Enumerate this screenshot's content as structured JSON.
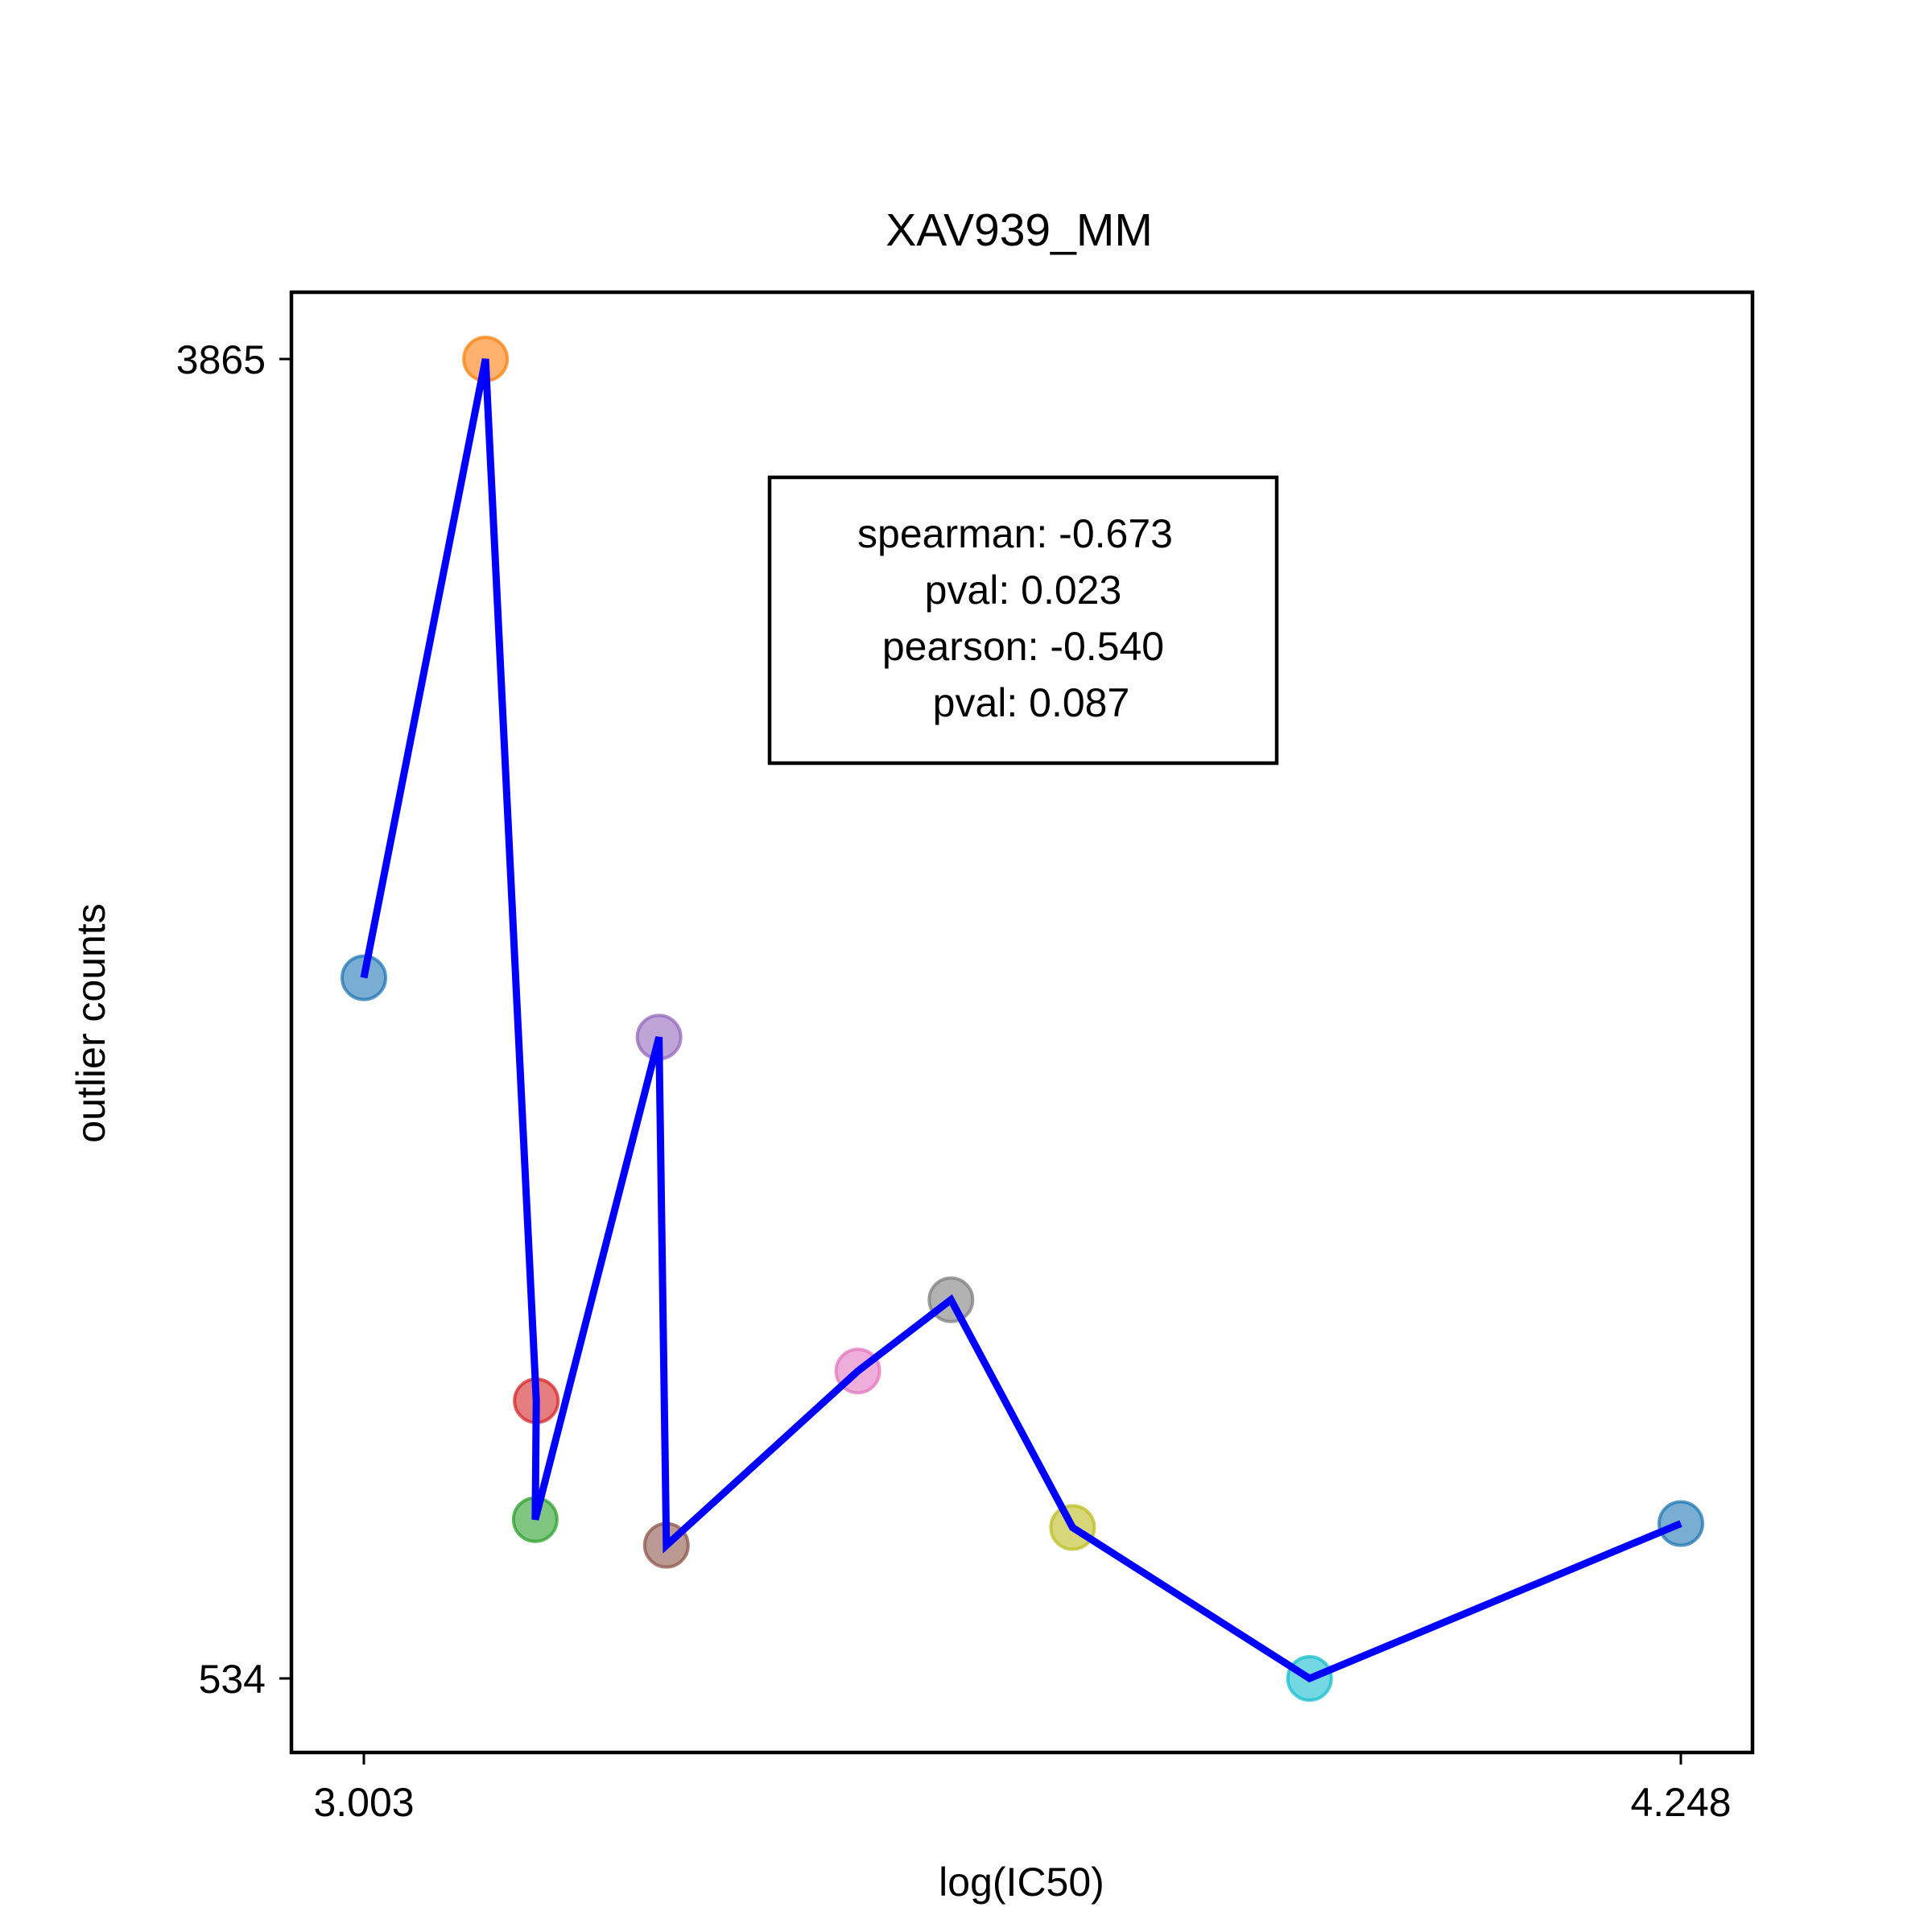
{
  "chart_data": {
    "type": "scatter",
    "title": "XAV939_MM",
    "xlabel": "log(IC50)",
    "ylabel": "outlier counts",
    "xticks": [
      "3.003",
      "4.248"
    ],
    "yticks": [
      "3865",
      "534"
    ],
    "x_tick_values": [
      3.003,
      4.248
    ],
    "y_tick_values": [
      3865,
      534
    ],
    "grid": false,
    "line_color": "#0000ff",
    "points": [
      {
        "x": 3.003,
        "y": 2303,
        "color": "#1f77b4"
      },
      {
        "x": 3.118,
        "y": 3865,
        "color": "#ff7f0e"
      },
      {
        "x": 3.166,
        "y": 1235,
        "color": "#d62728"
      },
      {
        "x": 3.165,
        "y": 935,
        "color": "#2ca02c"
      },
      {
        "x": 3.282,
        "y": 2153,
        "color": "#9467bd"
      },
      {
        "x": 3.289,
        "y": 870,
        "color": "#8c564b"
      },
      {
        "x": 3.47,
        "y": 1310,
        "color": "#e377c2"
      },
      {
        "x": 3.558,
        "y": 1490,
        "color": "#7f7f7f"
      },
      {
        "x": 3.673,
        "y": 915,
        "color": "#bcbd22"
      },
      {
        "x": 3.897,
        "y": 534,
        "color": "#17becf"
      },
      {
        "x": 4.248,
        "y": 925,
        "color": "#1f77b4"
      }
    ],
    "stats": {
      "spearman": "spearman: -0.673",
      "spearman_pval": "pval: 0.023",
      "pearson": "pearson: -0.540",
      "pearson_pval": "pval: 0.087"
    }
  }
}
